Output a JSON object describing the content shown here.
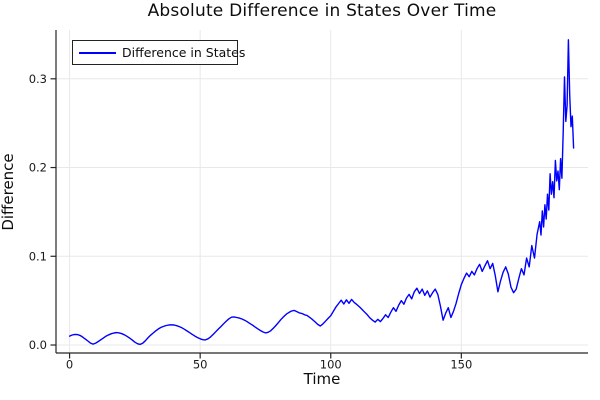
{
  "title": "Absolute Difference in States Over Time",
  "chart_data": {
    "type": "line",
    "title": "Absolute Difference in States Over Time",
    "xlabel": "Time",
    "ylabel": "Difference",
    "xlim": [
      -5.2,
      198.5
    ],
    "ylim": [
      -0.009,
      0.355
    ],
    "xticks": [
      0,
      50,
      100,
      150
    ],
    "yticks": [
      0.0,
      0.1,
      0.2,
      0.3
    ],
    "grid": true,
    "legend_position": "top-left",
    "colors": {
      "line": "#0000ff",
      "grid": "#e8e8e8",
      "axis": "#262626",
      "tick_label": "#1a1a1a",
      "background": "#ffffff"
    },
    "series": [
      {
        "name": "Difference in States",
        "points": [
          [
            0,
            0.01
          ],
          [
            1,
            0.0113
          ],
          [
            2,
            0.012
          ],
          [
            3,
            0.0117
          ],
          [
            4,
            0.0108
          ],
          [
            5,
            0.009
          ],
          [
            6,
            0.0068
          ],
          [
            7,
            0.0045
          ],
          [
            8,
            0.0022
          ],
          [
            9,
            0.001
          ],
          [
            10,
            0.0022
          ],
          [
            11,
            0.004
          ],
          [
            12,
            0.006
          ],
          [
            13,
            0.008
          ],
          [
            14,
            0.01
          ],
          [
            15,
            0.0115
          ],
          [
            16,
            0.0127
          ],
          [
            17,
            0.0135
          ],
          [
            18,
            0.014
          ],
          [
            19,
            0.0137
          ],
          [
            20,
            0.0128
          ],
          [
            21,
            0.0115
          ],
          [
            22,
            0.0098
          ],
          [
            23,
            0.0078
          ],
          [
            24,
            0.0055
          ],
          [
            25,
            0.0032
          ],
          [
            26,
            0.0015
          ],
          [
            27,
            0.0007
          ],
          [
            28,
            0.002
          ],
          [
            29,
            0.0048
          ],
          [
            30,
            0.008
          ],
          [
            31,
            0.011
          ],
          [
            32,
            0.0135
          ],
          [
            33,
            0.016
          ],
          [
            34,
            0.0182
          ],
          [
            35,
            0.0198
          ],
          [
            36,
            0.021
          ],
          [
            37,
            0.022
          ],
          [
            38,
            0.0226
          ],
          [
            39,
            0.0228
          ],
          [
            40,
            0.0225
          ],
          [
            41,
            0.0218
          ],
          [
            42,
            0.0208
          ],
          [
            43,
            0.0194
          ],
          [
            44,
            0.0177
          ],
          [
            45,
            0.0158
          ],
          [
            46,
            0.0139
          ],
          [
            47,
            0.012
          ],
          [
            48,
            0.01
          ],
          [
            49,
            0.0084
          ],
          [
            50,
            0.007
          ],
          [
            51,
            0.006
          ],
          [
            52,
            0.0058
          ],
          [
            53,
            0.007
          ],
          [
            54,
            0.0092
          ],
          [
            55,
            0.012
          ],
          [
            56,
            0.015
          ],
          [
            57,
            0.018
          ],
          [
            58,
            0.021
          ],
          [
            59,
            0.024
          ],
          [
            60,
            0.027
          ],
          [
            61,
            0.0295
          ],
          [
            62,
            0.0313
          ],
          [
            63,
            0.0317
          ],
          [
            64,
            0.031
          ],
          [
            65,
            0.0303
          ],
          [
            66,
            0.0293
          ],
          [
            67,
            0.028
          ],
          [
            68,
            0.0263
          ],
          [
            69,
            0.0244
          ],
          [
            70,
            0.0224
          ],
          [
            71,
            0.0204
          ],
          [
            72,
            0.0184
          ],
          [
            73,
            0.0165
          ],
          [
            74,
            0.0148
          ],
          [
            75,
            0.0136
          ],
          [
            76,
            0.0143
          ],
          [
            77,
            0.016
          ],
          [
            78,
            0.019
          ],
          [
            79,
            0.022
          ],
          [
            80,
            0.0255
          ],
          [
            81,
            0.029
          ],
          [
            82,
            0.032
          ],
          [
            83,
            0.0348
          ],
          [
            84,
            0.0368
          ],
          [
            85,
            0.0383
          ],
          [
            86,
            0.039
          ],
          [
            87,
            0.0376
          ],
          [
            88,
            0.0362
          ],
          [
            89,
            0.0355
          ],
          [
            90,
            0.0341
          ],
          [
            91,
            0.0333
          ],
          [
            92,
            0.031
          ],
          [
            93,
            0.0286
          ],
          [
            94,
            0.026
          ],
          [
            95,
            0.0232
          ],
          [
            96,
            0.0214
          ],
          [
            97,
            0.0238
          ],
          [
            98,
            0.0268
          ],
          [
            99,
            0.03
          ],
          [
            100,
            0.033
          ],
          [
            101,
            0.038
          ],
          [
            102,
            0.043
          ],
          [
            103,
            0.0468
          ],
          [
            104,
            0.0505
          ],
          [
            105,
            0.0462
          ],
          [
            106,
            0.051
          ],
          [
            107,
            0.047
          ],
          [
            108,
            0.0514
          ],
          [
            109,
            0.0478
          ],
          [
            110,
            0.0455
          ],
          [
            111,
            0.043
          ],
          [
            112,
            0.04
          ],
          [
            113,
            0.037
          ],
          [
            114,
            0.034
          ],
          [
            115,
            0.0306
          ],
          [
            116,
            0.028
          ],
          [
            117,
            0.0258
          ],
          [
            118,
            0.029
          ],
          [
            119,
            0.0264
          ],
          [
            120,
            0.03
          ],
          [
            121,
            0.034
          ],
          [
            122,
            0.031
          ],
          [
            123,
            0.037
          ],
          [
            124,
            0.042
          ],
          [
            125,
            0.038
          ],
          [
            126,
            0.045
          ],
          [
            127,
            0.05
          ],
          [
            128,
            0.046
          ],
          [
            129,
            0.053
          ],
          [
            130,
            0.057
          ],
          [
            131,
            0.052
          ],
          [
            132,
            0.06
          ],
          [
            133,
            0.064
          ],
          [
            134,
            0.058
          ],
          [
            135,
            0.063
          ],
          [
            136,
            0.056
          ],
          [
            137,
            0.061
          ],
          [
            138,
            0.054
          ],
          [
            139,
            0.059
          ],
          [
            140,
            0.063
          ],
          [
            141,
            0.057
          ],
          [
            142,
            0.044
          ],
          [
            143,
            0.028
          ],
          [
            144,
            0.036
          ],
          [
            145,
            0.042
          ],
          [
            146,
            0.031
          ],
          [
            147,
            0.038
          ],
          [
            148,
            0.047
          ],
          [
            149,
            0.058
          ],
          [
            150,
            0.068
          ],
          [
            151,
            0.075
          ],
          [
            152,
            0.081
          ],
          [
            153,
            0.077
          ],
          [
            154,
            0.083
          ],
          [
            155,
            0.079
          ],
          [
            156,
            0.086
          ],
          [
            157,
            0.091
          ],
          [
            158,
            0.083
          ],
          [
            159,
            0.089
          ],
          [
            160,
            0.095
          ],
          [
            161,
            0.086
          ],
          [
            162,
            0.092
          ],
          [
            163,
            0.078
          ],
          [
            164,
            0.06
          ],
          [
            165,
            0.072
          ],
          [
            166,
            0.082
          ],
          [
            167,
            0.088
          ],
          [
            168,
            0.08
          ],
          [
            169,
            0.065
          ],
          [
            170,
            0.059
          ],
          [
            171,
            0.063
          ],
          [
            172,
            0.075
          ],
          [
            173,
            0.086
          ],
          [
            174,
            0.079
          ],
          [
            175,
            0.098
          ],
          [
            176,
            0.088
          ],
          [
            177,
            0.112
          ],
          [
            178,
            0.098
          ],
          [
            179,
            0.125
          ],
          [
            180,
            0.139
          ],
          [
            180.5,
            0.124
          ],
          [
            181,
            0.151
          ],
          [
            181.5,
            0.133
          ],
          [
            182,
            0.158
          ],
          [
            182.5,
            0.142
          ],
          [
            183,
            0.17
          ],
          [
            183.5,
            0.152
          ],
          [
            184,
            0.193
          ],
          [
            184.5,
            0.17
          ],
          [
            185,
            0.184
          ],
          [
            185.5,
            0.166
          ],
          [
            186,
            0.208
          ],
          [
            186.5,
            0.185
          ],
          [
            187,
            0.196
          ],
          [
            187.5,
            0.175
          ],
          [
            188,
            0.21
          ],
          [
            188.5,
            0.188
          ],
          [
            189,
            0.24
          ],
          [
            189.5,
            0.302
          ],
          [
            190,
            0.252
          ],
          [
            190.5,
            0.27
          ],
          [
            191,
            0.344
          ],
          [
            191.5,
            0.282
          ],
          [
            192,
            0.246
          ],
          [
            192.5,
            0.258
          ],
          [
            193,
            0.222
          ]
        ]
      }
    ]
  }
}
